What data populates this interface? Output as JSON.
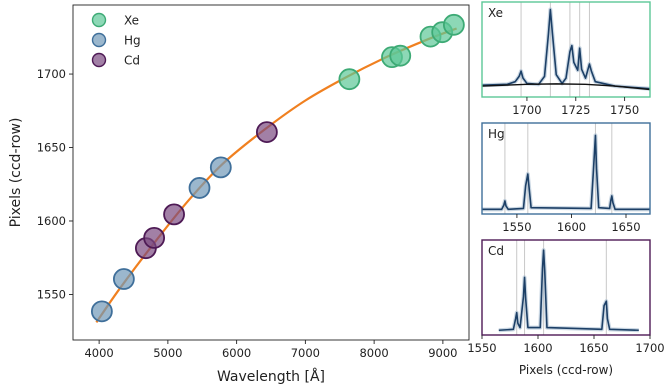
{
  "chart_data": [
    {
      "type": "scatter",
      "panel": "main",
      "xlabel": "Wavelength [Å]",
      "ylabel": "Pixels (ccd-row)",
      "xlim": [
        3620,
        9380
      ],
      "ylim": [
        1519,
        1747
      ],
      "xticks": [
        4000,
        5000,
        6000,
        7000,
        8000,
        9000
      ],
      "yticks": [
        1550,
        1600,
        1650,
        1700
      ],
      "legend": {
        "placement": "top-left",
        "entries": [
          "Xe",
          "Hg",
          "Cd"
        ]
      },
      "series": [
        {
          "name": "Xe",
          "color": "#5cc797",
          "edge": "#3daa75",
          "points": [
            [
              7640,
              1696.5
            ],
            [
              8260,
              1711.5
            ],
            [
              8380,
              1712.5
            ],
            [
              8820,
              1725.5
            ],
            [
              8990,
              1728.5
            ],
            [
              9160,
              1733.5
            ]
          ]
        },
        {
          "name": "Hg",
          "color": "#7198b8",
          "edge": "#3f6f9a",
          "points": [
            [
              4040,
              1538.5
            ],
            [
              4360,
              1560.5
            ],
            [
              5460,
              1622.5
            ],
            [
              5770,
              1636.5
            ]
          ]
        },
        {
          "name": "Cd",
          "color": "#7a4a80",
          "edge": "#4e1a55",
          "points": [
            [
              4680,
              1581.5
            ],
            [
              4800,
              1588.5
            ],
            [
              5090,
              1604.5
            ],
            [
              6440,
              1660.5
            ]
          ]
        }
      ],
      "fit_line": {
        "color": "#f08020",
        "points": [
          [
            3960,
            1531
          ],
          [
            4300,
            1554
          ],
          [
            4800,
            1585
          ],
          [
            5300,
            1614
          ],
          [
            5800,
            1639
          ],
          [
            6400,
            1662
          ],
          [
            7000,
            1682
          ],
          [
            7600,
            1698
          ],
          [
            8200,
            1712
          ],
          [
            8800,
            1724
          ],
          [
            9200,
            1731
          ]
        ]
      }
    },
    {
      "type": "line",
      "panel": "Xe",
      "label": "Xe",
      "frame_color": "#5cc797",
      "xlim": [
        1677,
        1763
      ],
      "xticks": [
        1700,
        1725,
        1750
      ],
      "ref_lines": [
        1697,
        1712,
        1722,
        1727,
        1732
      ],
      "trace": [
        [
          1677,
          0.1
        ],
        [
          1690,
          0.11
        ],
        [
          1694,
          0.14
        ],
        [
          1696,
          0.2
        ],
        [
          1697,
          0.26
        ],
        [
          1698,
          0.18
        ],
        [
          1700,
          0.12
        ],
        [
          1706,
          0.11
        ],
        [
          1709,
          0.2
        ],
        [
          1711,
          0.68
        ],
        [
          1712,
          0.96
        ],
        [
          1713,
          0.7
        ],
        [
          1715,
          0.22
        ],
        [
          1718,
          0.12
        ],
        [
          1720,
          0.18
        ],
        [
          1722,
          0.48
        ],
        [
          1723,
          0.55
        ],
        [
          1724,
          0.36
        ],
        [
          1726,
          0.27
        ],
        [
          1727,
          0.52
        ],
        [
          1728,
          0.28
        ],
        [
          1730,
          0.18
        ],
        [
          1732,
          0.34
        ],
        [
          1733,
          0.26
        ],
        [
          1735,
          0.14
        ],
        [
          1745,
          0.09
        ],
        [
          1763,
          0.06
        ]
      ],
      "baseline": [
        [
          1677,
          0.09
        ],
        [
          1700,
          0.11
        ],
        [
          1715,
          0.115
        ],
        [
          1730,
          0.11
        ],
        [
          1745,
          0.09
        ],
        [
          1763,
          0.05
        ]
      ]
    },
    {
      "type": "line",
      "panel": "Hg",
      "label": "Hg",
      "frame_color": "#3f6f9a",
      "xlim": [
        1518,
        1672
      ],
      "xticks": [
        1550,
        1600,
        1650
      ],
      "ref_lines": [
        1539,
        1560,
        1622,
        1637
      ],
      "trace": [
        [
          1518,
          0.02
        ],
        [
          1536,
          0.02
        ],
        [
          1538,
          0.07
        ],
        [
          1539,
          0.12
        ],
        [
          1540,
          0.06
        ],
        [
          1542,
          0.02
        ],
        [
          1556,
          0.03
        ],
        [
          1558,
          0.3
        ],
        [
          1560,
          0.44
        ],
        [
          1561,
          0.3
        ],
        [
          1563,
          0.04
        ],
        [
          1618,
          0.03
        ],
        [
          1620,
          0.45
        ],
        [
          1622,
          0.9
        ],
        [
          1623,
          0.5
        ],
        [
          1625,
          0.04
        ],
        [
          1635,
          0.03
        ],
        [
          1636,
          0.12
        ],
        [
          1637,
          0.18
        ],
        [
          1638,
          0.1
        ],
        [
          1640,
          0.02
        ],
        [
          1672,
          0.02
        ]
      ]
    },
    {
      "type": "line",
      "panel": "Cd",
      "label": "Cd",
      "frame_color": "#4e1a55",
      "xlim": [
        1550,
        1700
      ],
      "xticks": [
        1550,
        1600,
        1650,
        1700
      ],
      "xlabel": "Pixels (ccd-row)",
      "ref_lines": [
        1581,
        1588,
        1605,
        1661
      ],
      "trace": [
        [
          1565,
          0.02
        ],
        [
          1578,
          0.03
        ],
        [
          1580,
          0.15
        ],
        [
          1581,
          0.22
        ],
        [
          1582,
          0.1
        ],
        [
          1584,
          0.05
        ],
        [
          1587,
          0.4
        ],
        [
          1588,
          0.62
        ],
        [
          1589,
          0.38
        ],
        [
          1591,
          0.05
        ],
        [
          1602,
          0.05
        ],
        [
          1604,
          0.72
        ],
        [
          1605,
          0.93
        ],
        [
          1606,
          0.7
        ],
        [
          1608,
          0.05
        ],
        [
          1657,
          0.03
        ],
        [
          1659,
          0.3
        ],
        [
          1661,
          0.35
        ],
        [
          1662,
          0.15
        ],
        [
          1664,
          0.03
        ],
        [
          1690,
          0.02
        ]
      ]
    }
  ]
}
